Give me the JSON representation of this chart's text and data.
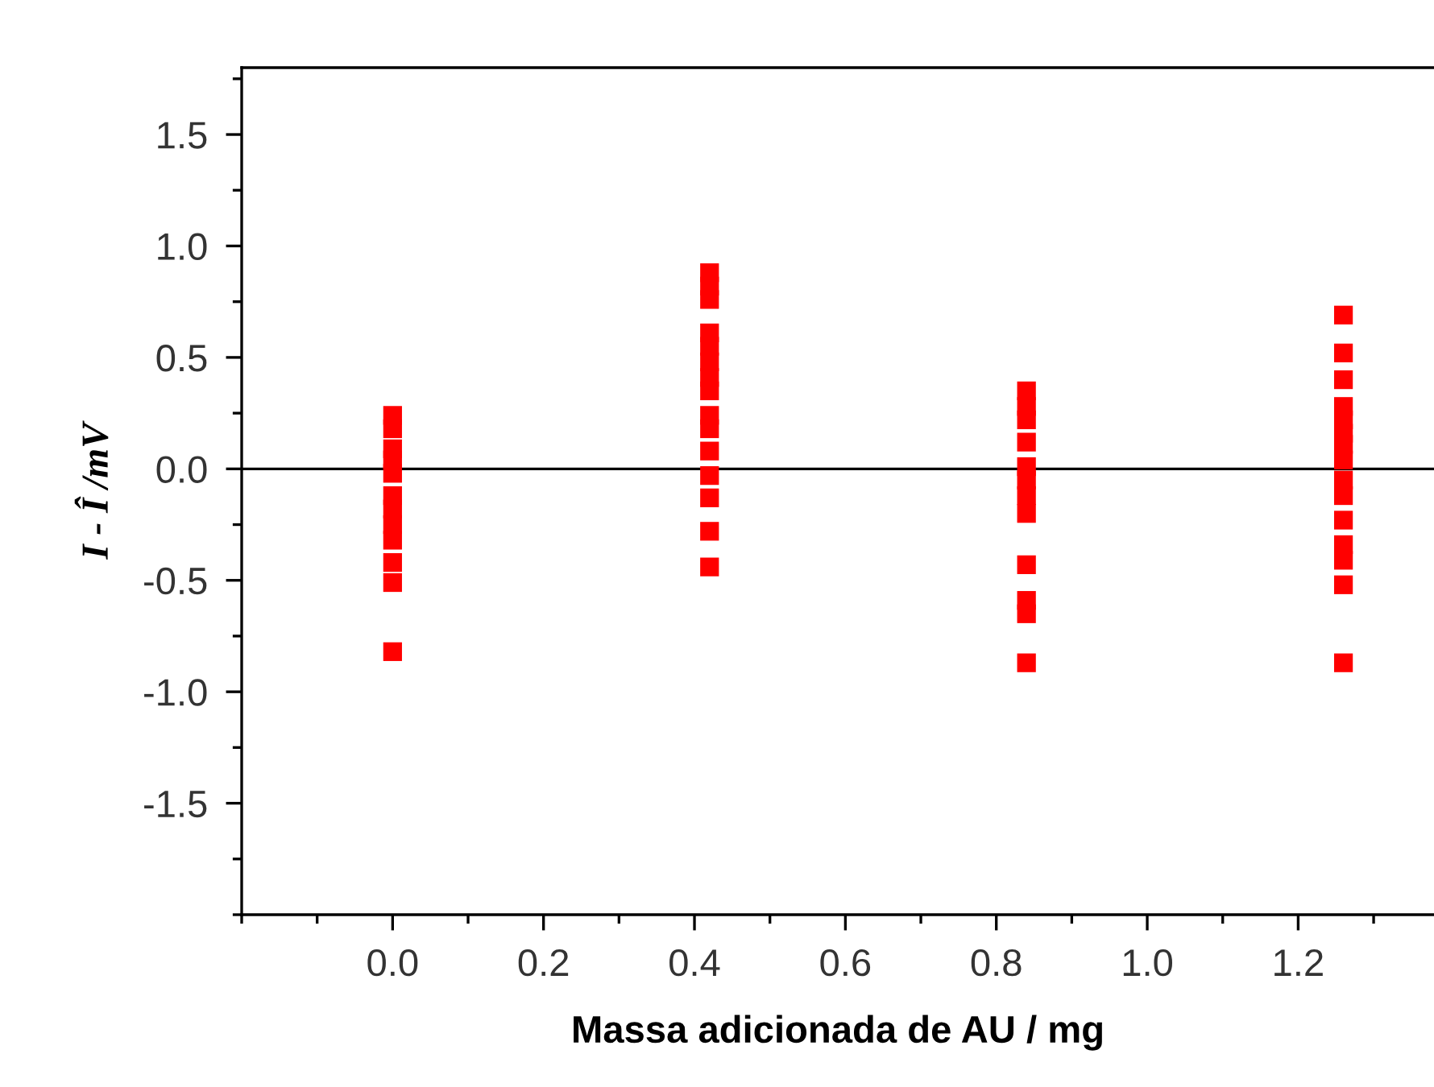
{
  "chart_data": {
    "type": "scatter",
    "xlabel": "Massa adicionada de AU / mg",
    "ylabel": "I - Î /mV",
    "xlim": [
      -0.2,
      1.38
    ],
    "ylim": [
      -2.0,
      1.8
    ],
    "xticks": [
      {
        "value": 0,
        "label": "0.0"
      },
      0.2,
      0.4,
      0.6,
      0.8,
      {
        "value": 1,
        "label": "1.0"
      },
      1.2
    ],
    "yticks": [
      -1.5,
      {
        "value": -1,
        "label": "-1.0"
      },
      -0.5,
      {
        "value": 0,
        "label": "0.0"
      },
      0.5,
      {
        "value": 1,
        "label": "1.0"
      },
      1.5
    ],
    "marker": "square",
    "grid": false,
    "legend": false,
    "ref_lines": [
      {
        "axis": "y",
        "value": 0.0,
        "color": "#000000",
        "line_style": "solid"
      }
    ],
    "series": [
      {
        "color": "#ff0000",
        "x": [
          0,
          0,
          0,
          0,
          0,
          0,
          0,
          0,
          0,
          0,
          0,
          0
        ],
        "values": [
          0.24,
          0.18,
          0.09,
          0.04,
          -0.02,
          -0.12,
          -0.18,
          -0.25,
          -0.32,
          -0.42,
          -0.51,
          -0.82
        ]
      },
      {
        "color": "#ff0000",
        "x": [
          0.42,
          0.42,
          0.42,
          0.42,
          0.42,
          0.42,
          0.42,
          0.42,
          0.42,
          0.42,
          0.42,
          0.42,
          0.42,
          0.42,
          0.42
        ],
        "values": [
          0.88,
          0.82,
          0.76,
          0.61,
          0.55,
          0.48,
          0.41,
          0.35,
          0.24,
          0.18,
          0.08,
          -0.03,
          -0.13,
          -0.28,
          -0.44
        ]
      },
      {
        "color": "#ff0000",
        "x": [
          0.84,
          0.84,
          0.84,
          0.84,
          0.84,
          0.84,
          0.84,
          0.84,
          0.84,
          0.84,
          0.84,
          0.84
        ],
        "values": [
          0.35,
          0.28,
          0.22,
          0.12,
          0.01,
          -0.05,
          -0.12,
          -0.2,
          -0.43,
          -0.59,
          -0.65,
          -0.87
        ]
      },
      {
        "color": "#ff0000",
        "x": [
          1.26,
          1.26,
          1.26,
          1.26,
          1.26,
          1.26,
          1.26,
          1.26,
          1.26,
          1.26,
          1.26,
          1.26,
          1.26,
          1.26,
          1.26
        ],
        "values": [
          0.69,
          0.52,
          0.4,
          0.28,
          0.22,
          0.16,
          0.11,
          0.04,
          -0.05,
          -0.12,
          -0.23,
          -0.34,
          -0.41,
          -0.52,
          -0.87
        ]
      }
    ]
  }
}
